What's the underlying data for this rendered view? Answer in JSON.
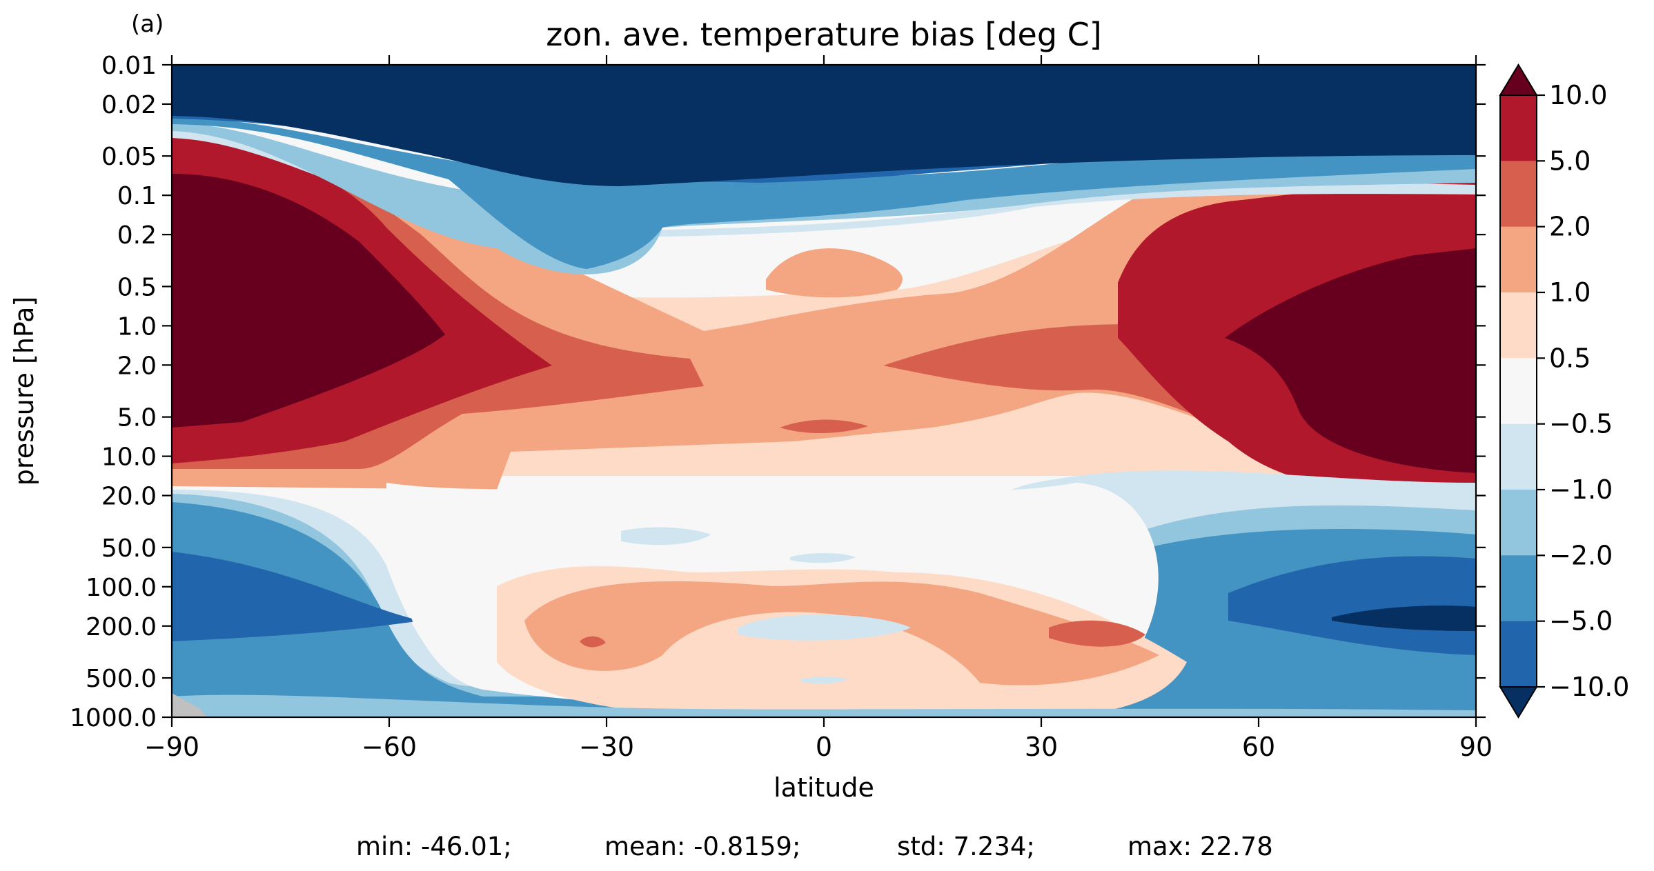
{
  "panel_label": "(a)",
  "chart_data": {
    "type": "heatmap",
    "title": "zon. ave. temperature bias [deg C]",
    "xlabel": "latitude",
    "ylabel": "pressure [hPa]",
    "xlim": [
      -90,
      90
    ],
    "ylim": [
      1000.0,
      0.01
    ],
    "y_scale": "log (inverted)",
    "x_ticks": [
      -90,
      -60,
      -30,
      0,
      30,
      60,
      90
    ],
    "x_tick_labels": [
      "−90",
      "−60",
      "−30",
      "0",
      "30",
      "60",
      "90"
    ],
    "y_ticks": [
      0.01,
      0.02,
      0.05,
      0.1,
      0.2,
      0.5,
      1.0,
      2.0,
      5.0,
      10.0,
      20.0,
      50.0,
      100.0,
      200.0,
      500.0,
      1000.0
    ],
    "y_tick_labels": [
      "0.01",
      "0.02",
      "0.05",
      "0.1",
      "0.2",
      "0.5",
      "1.0",
      "2.0",
      "5.0",
      "10.0",
      "20.0",
      "50.0",
      "100.0",
      "200.0",
      "500.0",
      "1000.0"
    ],
    "colorbar": {
      "levels": [
        -10.0,
        -5.0,
        -2.0,
        -1.0,
        -0.5,
        0.5,
        1.0,
        2.0,
        5.0,
        10.0
      ],
      "tick_labels": [
        "−10.0",
        "−5.0",
        "−2.0",
        "−1.0",
        "−0.5",
        "0.5",
        "1.0",
        "2.0",
        "5.0",
        "10.0"
      ],
      "colors": [
        "#053061",
        "#2166ac",
        "#4393c3",
        "#92c5de",
        "#d1e5f0",
        "#f7f7f7",
        "#fddbc7",
        "#f4a582",
        "#d6604d",
        "#b2182b",
        "#67001f"
      ],
      "extend": "both"
    },
    "approx_regions": [
      {
        "level": 10,
        "lat_range": [
          -90,
          -55
        ],
        "p_range": [
          0.1,
          7
        ]
      },
      {
        "level": 10,
        "lat_range": [
          57,
          90
        ],
        "p_range": [
          0.2,
          13
        ]
      },
      {
        "level": 1,
        "lat_range": [
          -10,
          10
        ],
        "p_range": [
          0.2,
          0.6
        ]
      },
      {
        "level": 2,
        "lat_range": [
          -5,
          5
        ],
        "p_range": [
          5,
          8
        ]
      },
      {
        "level": 2,
        "lat_range": [
          30,
          45
        ],
        "p_range": [
          170,
          300
        ]
      },
      {
        "level": -10,
        "lat_range": [
          70,
          90
        ],
        "p_range": [
          150,
          220
        ]
      },
      {
        "level": -10,
        "lat_range": [
          -90,
          90
        ],
        "p_range": [
          0.01,
          0.05
        ]
      }
    ]
  },
  "stats": {
    "min": "min: -46.01;",
    "mean": "mean: -0.8159;",
    "std": "std: 7.234;",
    "max": "max: 22.78"
  }
}
